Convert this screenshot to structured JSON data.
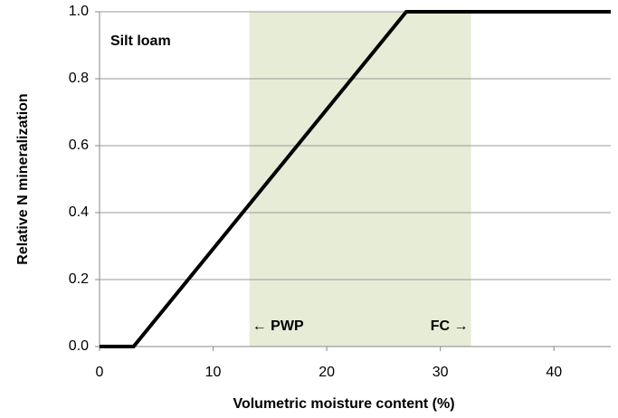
{
  "chart_data": {
    "type": "line",
    "x_label": "Volumetric moisture content (%)",
    "y_label": "Relative N mineralization",
    "annotations": [
      "Silt loam",
      "← PWP",
      "FC →"
    ],
    "x": [
      0,
      3,
      27,
      45
    ],
    "series": [
      {
        "name": "Silt loam",
        "color": "#000000",
        "values": [
          0,
          0,
          1,
          1
        ]
      }
    ],
    "shaded_region": {
      "x": [
        13.2,
        32.7
      ],
      "color": "#e6ecd6"
    },
    "xlim": [
      0,
      45
    ],
    "xticks": [
      0,
      10,
      20,
      30,
      40
    ],
    "ylim": [
      0,
      1
    ],
    "yticks": [
      {
        "value": 0,
        "label": "0.0"
      },
      {
        "value": 0.2,
        "label": "0.2"
      },
      {
        "value": 0.4,
        "label": "0.4"
      },
      {
        "value": 0.6,
        "label": "0.6"
      },
      {
        "value": 0.8,
        "label": "0.8"
      },
      {
        "value": 1,
        "label": "1.0"
      }
    ],
    "grid": true
  }
}
